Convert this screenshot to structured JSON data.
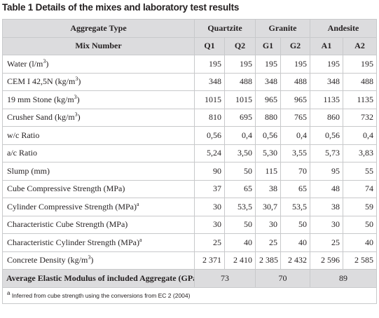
{
  "caption": {
    "label": "Table 1",
    "text": " Details of the mixes and laboratory test results"
  },
  "header1": {
    "label": "Aggregate Type",
    "groups": [
      "Quartzite",
      "Granite",
      "Andesite"
    ]
  },
  "header2": {
    "label": "Mix Number",
    "mixes": [
      "Q1",
      "Q2",
      "G1",
      "G2",
      "A1",
      "A2"
    ]
  },
  "rows": [
    {
      "label": "Water (l/m",
      "sup": "3",
      "suffix": ")",
      "values": [
        "195",
        "195",
        "195",
        "195",
        "195",
        "195"
      ]
    },
    {
      "label": "CEM I 42,5N (kg/m",
      "sup": "3",
      "suffix": ")",
      "values": [
        "348",
        "488",
        "348",
        "488",
        "348",
        "488"
      ]
    },
    {
      "label": "19 mm Stone (kg/m",
      "sup": "3",
      "suffix": ")",
      "values": [
        "1015",
        "1015",
        "965",
        "965",
        "1135",
        "1135"
      ]
    },
    {
      "label": "Crusher Sand (kg/m",
      "sup": "3",
      "suffix": ")",
      "values": [
        "810",
        "695",
        "880",
        "765",
        "860",
        "732"
      ]
    },
    {
      "label": "w/c Ratio",
      "sup": "",
      "suffix": "",
      "values": [
        "0,56",
        "0,4",
        "0,56",
        "0,4",
        "0,56",
        "0,4"
      ]
    },
    {
      "label": "a/c Ratio",
      "sup": "",
      "suffix": "",
      "values": [
        "5,24",
        "3,50",
        "5,30",
        "3,55",
        "5,73",
        "3,83"
      ]
    },
    {
      "label": "Slump (mm)",
      "sup": "",
      "suffix": "",
      "values": [
        "90",
        "50",
        "115",
        "70",
        "95",
        "55"
      ]
    },
    {
      "label": "Cube Compressive Strength (MPa)",
      "sup": "",
      "suffix": "",
      "values": [
        "37",
        "65",
        "38",
        "65",
        "48",
        "74"
      ]
    },
    {
      "label": "Cylinder Compressive Strength (MPa)",
      "sup": "a",
      "suffix": "",
      "values": [
        "30",
        "53,5",
        "30,7",
        "53,5",
        "38",
        "59"
      ]
    },
    {
      "label": "Characteristic Cube Strength (MPa)",
      "sup": "",
      "suffix": "",
      "values": [
        "30",
        "50",
        "30",
        "50",
        "30",
        "50"
      ]
    },
    {
      "label": "Characteristic Cylinder Strength (MPa)",
      "sup": "a",
      "suffix": "",
      "values": [
        "25",
        "40",
        "25",
        "40",
        "25",
        "40"
      ]
    },
    {
      "label": "Concrete Density (kg/m",
      "sup": "3",
      "suffix": ")",
      "values": [
        "2 371",
        "2 410",
        "2 385",
        "2 432",
        "2 596",
        "2 585"
      ]
    }
  ],
  "average": {
    "label": "Average Elastic Modulus of included Aggregate (GPa)",
    "values": [
      "73",
      "70",
      "89"
    ]
  },
  "footnote": {
    "sup": "a",
    "text": " Inferred from cube strength using the conversions from EC 2 (2004)"
  }
}
